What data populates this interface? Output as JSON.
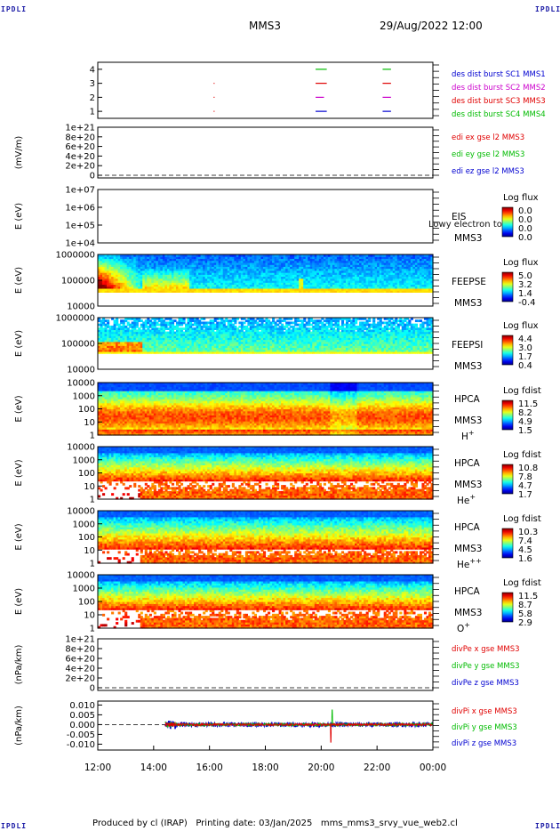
{
  "corner_tag": "IPDLI",
  "header": {
    "spacecraft": "MMS3",
    "datetime": "29/Aug/2022 12:00"
  },
  "footer": "Produced by cl (IRAP)   Printing date: 03/Jan/2025   mms_mms3_srvy_vue_web2.cl",
  "colors": {
    "mms1": "#0000d0",
    "mms2": "#cc00cc",
    "mms3": "#e00000",
    "mms4": "#00bb00",
    "x": "#e00000",
    "y": "#00bb00",
    "z": "#0000d0"
  },
  "chart_data": {
    "type": "heatmap",
    "time_axis": {
      "ticks": [
        "12:00",
        "14:00",
        "16:00",
        "18:00",
        "20:00",
        "22:00",
        "00:00"
      ],
      "range_hours": [
        12,
        24
      ]
    },
    "panels": [
      {
        "id": "burst",
        "type": "scatter",
        "ylabel": "",
        "yticks": [
          "4",
          "3",
          "2",
          "1"
        ],
        "yrange": [
          0.5,
          4.5
        ],
        "legend": [
          "des dist burst SC1 MMS1",
          "des dist burst SC2 MMS2",
          "des dist burst SC3 MMS3",
          "des dist burst SC4 MMS4"
        ],
        "series": [
          {
            "sc": 4,
            "segments": [
              [
                19.8,
                20.2
              ],
              [
                22.2,
                22.5
              ]
            ]
          },
          {
            "sc": 3,
            "segments": [
              [
                16.15,
                16.17
              ],
              [
                19.8,
                20.2
              ],
              [
                22.2,
                22.5
              ]
            ]
          },
          {
            "sc": 2,
            "segments": [
              [
                16.15,
                16.17
              ],
              [
                19.8,
                20.1
              ],
              [
                22.2,
                22.5
              ]
            ]
          },
          {
            "sc": 1,
            "segments": [
              [
                16.15,
                16.17
              ],
              [
                19.8,
                20.2
              ],
              [
                22.2,
                22.5
              ]
            ]
          }
        ]
      },
      {
        "id": "edi",
        "type": "line",
        "ylabel": "(mV/m)",
        "yticks": [
          "1e+21",
          "8e+20",
          "6e+20",
          "4e+20",
          "2e+20",
          "0"
        ],
        "yrange": [
          0,
          1e+21
        ],
        "legend": [
          "edi ex gse l2 MMS3",
          "edi ey gse l2 MMS3",
          "edi ez gse l2 MMS3"
        ]
      },
      {
        "id": "eis",
        "type": "heatmap",
        "ylabel": "E (eV)",
        "yticks": [
          "1e+07",
          "1e+06",
          "1e+05",
          "1e+04"
        ],
        "side": [
          "EIS",
          "MMS3"
        ],
        "overlay": "Lowy electron to",
        "cbar": {
          "title": "Log flux",
          "ticks": [
            "0.0",
            "0.0",
            "0.0",
            "0.0"
          ]
        }
      },
      {
        "id": "feepse",
        "type": "heatmap",
        "ylabel": "E (eV)",
        "yticks": [
          "1000000",
          "100000",
          "10000"
        ],
        "side": [
          "FEEPSE",
          "MMS3"
        ],
        "cbar": {
          "title": "Log flux",
          "ticks": [
            "5.0",
            "3.2",
            "1.4",
            "-0.4"
          ]
        }
      },
      {
        "id": "feepsi",
        "type": "heatmap",
        "ylabel": "E (eV)",
        "yticks": [
          "1000000",
          "100000",
          "10000"
        ],
        "side": [
          "FEEPSI",
          "MMS3"
        ],
        "cbar": {
          "title": "Log flux",
          "ticks": [
            "4.4",
            "3.0",
            "1.7",
            "0.4"
          ]
        }
      },
      {
        "id": "hpca_h",
        "type": "heatmap",
        "ylabel": "E (eV)",
        "yticks": [
          "10000",
          "1000",
          "100",
          "10",
          "1"
        ],
        "side": [
          "HPCA",
          "MMS3"
        ],
        "species": "H",
        "charge": "+",
        "cbar": {
          "title": "Log fdist",
          "ticks": [
            "11.5",
            "8.2",
            "4.9",
            "1.5"
          ]
        }
      },
      {
        "id": "hpca_he",
        "type": "heatmap",
        "ylabel": "E (eV)",
        "yticks": [
          "10000",
          "1000",
          "100",
          "10",
          "1"
        ],
        "side": [
          "HPCA",
          "MMS3"
        ],
        "species": "He",
        "charge": "+",
        "cbar": {
          "title": "Log fdist",
          "ticks": [
            "10.8",
            "7.8",
            "4.7",
            "1.7"
          ]
        }
      },
      {
        "id": "hpca_he2",
        "type": "heatmap",
        "ylabel": "E (eV)",
        "yticks": [
          "10000",
          "1000",
          "100",
          "10",
          "1"
        ],
        "side": [
          "HPCA",
          "MMS3"
        ],
        "species": "He",
        "charge": "++",
        "cbar": {
          "title": "Log fdist",
          "ticks": [
            "10.3",
            "7.4",
            "4.5",
            "1.6"
          ]
        }
      },
      {
        "id": "hpca_o",
        "type": "heatmap",
        "ylabel": "E (eV)",
        "yticks": [
          "10000",
          "1000",
          "100",
          "10",
          "1"
        ],
        "side": [
          "HPCA",
          "MMS3"
        ],
        "species": "O",
        "charge": "+",
        "cbar": {
          "title": "Log fdist",
          "ticks": [
            "11.5",
            "8.7",
            "5.8",
            "2.9"
          ]
        }
      },
      {
        "id": "divpe",
        "type": "line",
        "ylabel": "(nPa/km)",
        "yticks": [
          "1e+21",
          "8e+20",
          "6e+20",
          "4e+20",
          "2e+20",
          "0"
        ],
        "yrange": [
          0,
          1e+21
        ],
        "legend": [
          "divPe x gse MMS3",
          "divPe y gse MMS3",
          "divPe z gse MMS3"
        ]
      },
      {
        "id": "divpi",
        "type": "line",
        "ylabel": "(nPa/km)",
        "yticks": [
          "0.010",
          "0.005",
          "0.000",
          "-0.005",
          "-0.010"
        ],
        "yrange": [
          -0.013,
          0.012
        ],
        "legend": [
          "divPi x gse MMS3",
          "divPi y gse MMS3",
          "divPi z gse MMS3"
        ],
        "data_start_hour": 14.4
      }
    ]
  }
}
